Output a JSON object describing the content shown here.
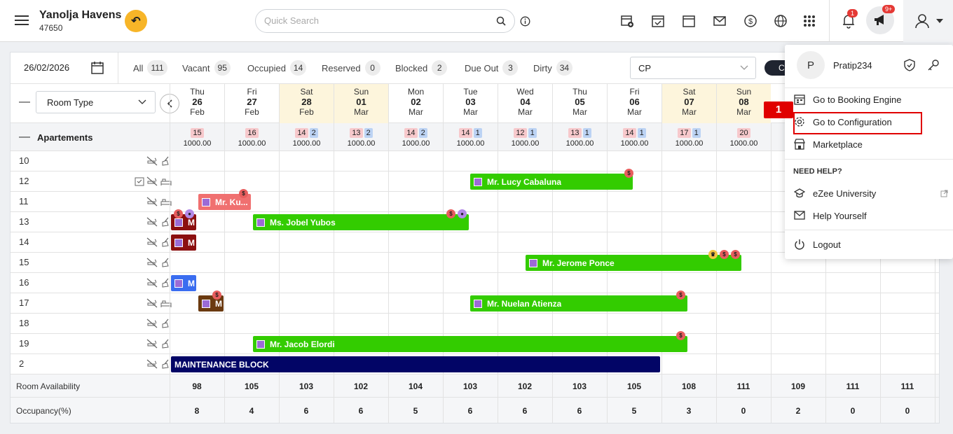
{
  "header": {
    "hotel_name": "Yanolja Havens",
    "hotel_code": "47650",
    "search_placeholder": "Quick Search",
    "notification_count": "1",
    "announcement_count": "9+"
  },
  "filters": {
    "date": "26/02/2026",
    "stats": [
      {
        "label": "All",
        "count": "111"
      },
      {
        "label": "Vacant",
        "count": "95"
      },
      {
        "label": "Occupied",
        "count": "14"
      },
      {
        "label": "Reserved",
        "count": "0"
      },
      {
        "label": "Blocked",
        "count": "2"
      },
      {
        "label": "Due Out",
        "count": "3"
      },
      {
        "label": "Dirty",
        "count": "34"
      }
    ],
    "rate_plan": "CP",
    "dark_button_label": "C"
  },
  "grid": {
    "room_type_label": "Room Type",
    "days": [
      {
        "dow": "Thu",
        "date": "26",
        "month": "Feb",
        "weekend": false
      },
      {
        "dow": "Fri",
        "date": "27",
        "month": "Feb",
        "weekend": false
      },
      {
        "dow": "Sat",
        "date": "28",
        "month": "Feb",
        "weekend": true
      },
      {
        "dow": "Sun",
        "date": "01",
        "month": "Mar",
        "weekend": true
      },
      {
        "dow": "Mon",
        "date": "02",
        "month": "Mar",
        "weekend": false
      },
      {
        "dow": "Tue",
        "date": "03",
        "month": "Mar",
        "weekend": false
      },
      {
        "dow": "Wed",
        "date": "04",
        "month": "Mar",
        "weekend": false
      },
      {
        "dow": "Thu",
        "date": "05",
        "month": "Mar",
        "weekend": false
      },
      {
        "dow": "Fri",
        "date": "06",
        "month": "Mar",
        "weekend": false
      },
      {
        "dow": "Sat",
        "date": "07",
        "month": "Mar",
        "weekend": true
      },
      {
        "dow": "Sun",
        "date": "08",
        "month": "Mar",
        "weekend": true
      }
    ],
    "category": {
      "name": "Apartements",
      "cells": [
        {
          "red": "15",
          "blue": "",
          "price": "1000.00"
        },
        {
          "red": "16",
          "blue": "",
          "price": "1000.00"
        },
        {
          "red": "14",
          "blue": "2",
          "price": "1000.00"
        },
        {
          "red": "13",
          "blue": "2",
          "price": "1000.00"
        },
        {
          "red": "14",
          "blue": "2",
          "price": "1000.00"
        },
        {
          "red": "14",
          "blue": "1",
          "price": "1000.00"
        },
        {
          "red": "12",
          "blue": "1",
          "price": "1000.00"
        },
        {
          "red": "13",
          "blue": "1",
          "price": "1000.00"
        },
        {
          "red": "14",
          "blue": "1",
          "price": "1000.00"
        },
        {
          "red": "17",
          "blue": "1",
          "price": "1000.00"
        },
        {
          "red": "20",
          "blue": "",
          "price": "1000.00"
        },
        {
          "red": "",
          "blue": "",
          "price": "1"
        }
      ]
    },
    "rooms": [
      "10",
      "12",
      "11",
      "13",
      "14",
      "15",
      "16",
      "17",
      "18",
      "19",
      "2"
    ],
    "bookings": [
      {
        "name": "Mr. Lucy Cabaluna"
      },
      {
        "name": "Mr. Ku..."
      },
      {
        "name": "M"
      },
      {
        "name": "Ms. Jobel Yubos"
      },
      {
        "name": "M"
      },
      {
        "name": "Mr. Jerome Ponce"
      },
      {
        "name": "M"
      },
      {
        "name": "M"
      },
      {
        "name": "Mr. Nuelan Atienza"
      },
      {
        "name": "Mr. Jacob Elordi"
      },
      {
        "name": "MAINTENANCE BLOCK"
      }
    ],
    "footer": {
      "availability_label": "Room Availability",
      "availability": [
        "98",
        "105",
        "103",
        "102",
        "104",
        "103",
        "102",
        "103",
        "105",
        "108",
        "111",
        "109",
        "111",
        "111"
      ],
      "occupancy_label": "Occupancy(%)",
      "occupancy": [
        "8",
        "4",
        "6",
        "6",
        "5",
        "6",
        "6",
        "6",
        "5",
        "3",
        "0",
        "2",
        "0",
        "0"
      ]
    }
  },
  "user_menu": {
    "avatar_letter": "P",
    "username": "Pratip234",
    "items": [
      {
        "label": "Go to Booking Engine"
      },
      {
        "label": "Go to Configuration"
      },
      {
        "label": "Marketplace"
      }
    ],
    "help_heading": "NEED HELP?",
    "help_items": [
      {
        "label": "eZee University"
      },
      {
        "label": "Help Yourself"
      }
    ],
    "logout_label": "Logout"
  },
  "annotation": {
    "step": "1"
  },
  "colors": {
    "accent_yellow": "#f7b528",
    "booking_green": "#33cc00",
    "booking_pink": "#f07070",
    "booking_maroon": "#8b0f0f",
    "booking_blue": "#3a6df0",
    "booking_brown": "#6b3a10",
    "maintenance_navy": "#020566",
    "highlight_red": "#e00000"
  }
}
